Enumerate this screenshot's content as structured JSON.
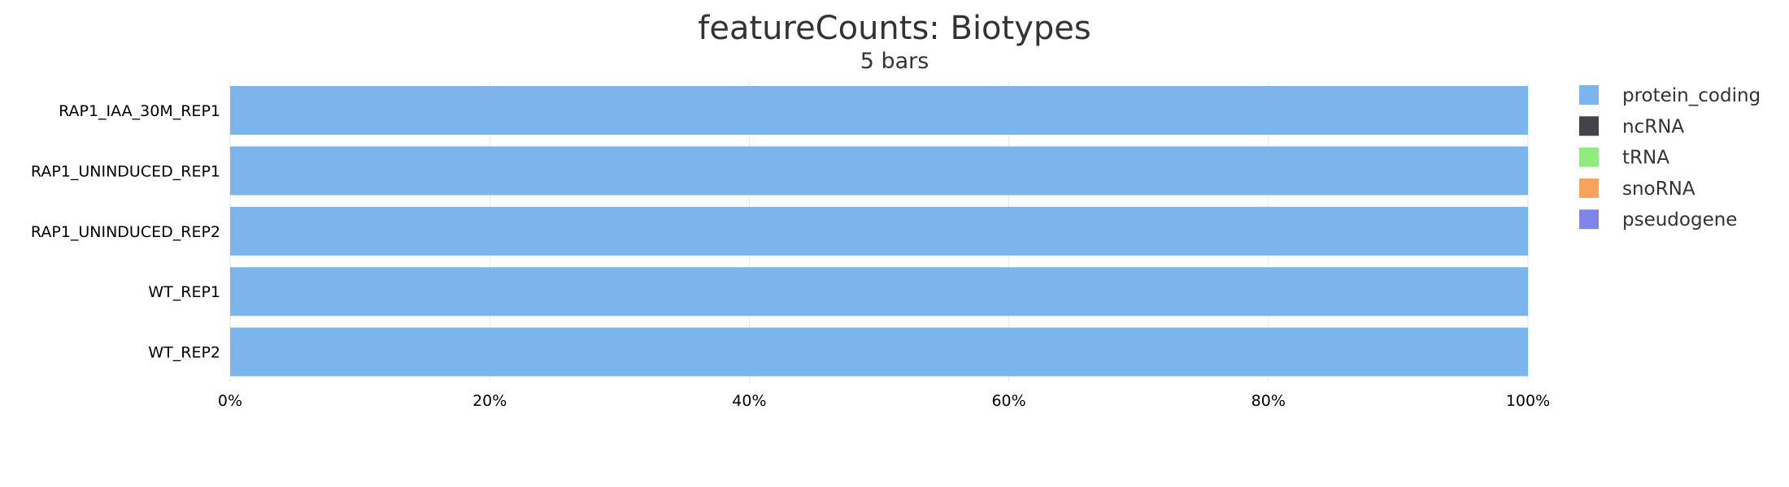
{
  "chart_data": {
    "type": "bar",
    "orientation": "horizontal",
    "stacked": true,
    "percentage": true,
    "title": "featureCounts: Biotypes",
    "subtitle": "5 bars",
    "categories": [
      "RAP1_IAA_30M_REP1",
      "RAP1_UNINDUCED_REP1",
      "RAP1_UNINDUCED_REP2",
      "WT_REP1",
      "WT_REP2"
    ],
    "series": [
      {
        "name": "protein_coding",
        "color": "#7cb5ec",
        "values": [
          100,
          100,
          100,
          100,
          100
        ]
      },
      {
        "name": "ncRNA",
        "color": "#434348",
        "values": [
          0,
          0,
          0,
          0,
          0
        ]
      },
      {
        "name": "tRNA",
        "color": "#90ed7d",
        "values": [
          0,
          0,
          0,
          0,
          0
        ]
      },
      {
        "name": "snoRNA",
        "color": "#f7a35c",
        "values": [
          0,
          0,
          0,
          0,
          0
        ]
      },
      {
        "name": "pseudogene",
        "color": "#8085e9",
        "values": [
          0,
          0,
          0,
          0,
          0
        ]
      }
    ],
    "xlim": [
      0,
      100
    ],
    "xticks": [
      "0%",
      "20%",
      "40%",
      "60%",
      "80%",
      "100%"
    ],
    "grid": true,
    "legend_position": "right"
  }
}
